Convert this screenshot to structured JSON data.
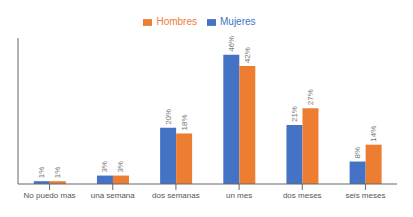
{
  "chart_data": {
    "type": "bar",
    "categories": [
      "No puedo mas",
      "una semana",
      "dos semanas",
      "un mes",
      "dos meses",
      "seis meses"
    ],
    "series": [
      {
        "name": "Mujeres",
        "color": "#4472C4",
        "values": [
          1,
          3,
          20,
          46,
          21,
          8
        ],
        "value_labels": [
          "1%",
          "3%",
          "20%",
          "46%",
          "21%",
          "8%"
        ]
      },
      {
        "name": "Hombres",
        "color": "#ED7D31",
        "values": [
          1,
          3,
          18,
          42,
          27,
          14
        ],
        "value_labels": [
          "1%",
          "3%",
          "18%",
          "42%",
          "27%",
          "14%"
        ]
      }
    ],
    "ylim": [
      0,
      52
    ],
    "tick_labels": "x",
    "data_labels": true,
    "legend": "top",
    "grid": false
  }
}
